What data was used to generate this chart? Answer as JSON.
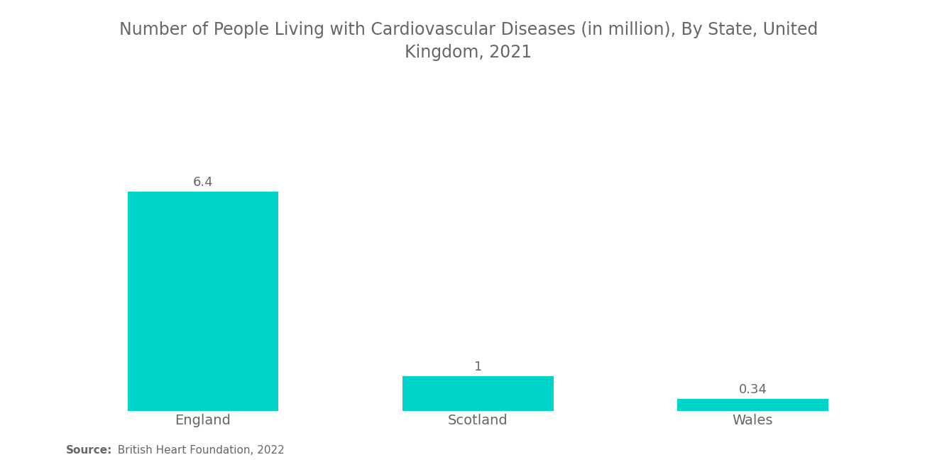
{
  "title_line1": "Number of People Living with Cardiovascular Diseases (in million), By State, United",
  "title_line2": "Kingdom, 2021",
  "categories": [
    "England",
    "Scotland",
    "Wales"
  ],
  "values": [
    6.4,
    1,
    0.34
  ],
  "bar_color": "#00D4C8",
  "value_labels": [
    "6.4",
    "1",
    "0.34"
  ],
  "source_bold": "Source:",
  "source_rest": "  British Heart Foundation, 2022",
  "title_fontsize": 17,
  "label_fontsize": 14,
  "value_fontsize": 13,
  "source_fontsize": 11,
  "background_color": "#ffffff",
  "title_color": "#666666",
  "label_color": "#666666",
  "value_color": "#666666",
  "ylim": [
    0,
    8.0
  ],
  "bar_width": 0.55,
  "x_positions": [
    0.5,
    1.5,
    2.5
  ],
  "xlim": [
    0,
    3.0
  ]
}
